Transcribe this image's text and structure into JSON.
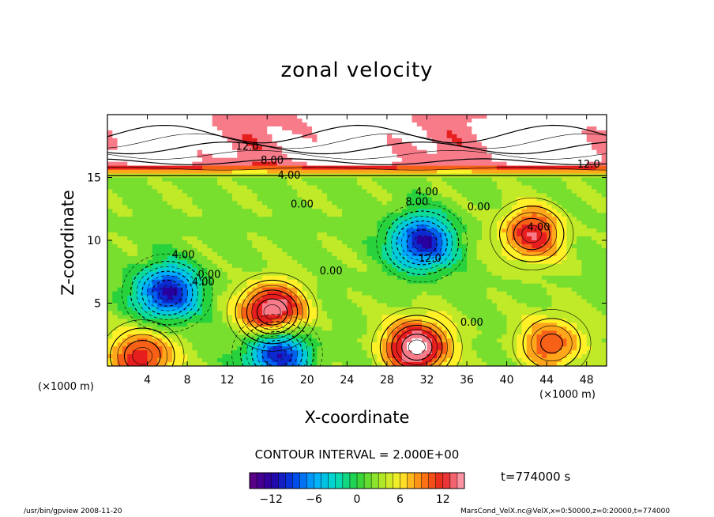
{
  "chart_data": {
    "type": "contour",
    "title": "zonal velocity",
    "xlabel": "X-coordinate",
    "ylabel": "Z-coordinate",
    "x_unit_label": "(×1000 m)",
    "z_unit_label": "(×1000 m)",
    "xlim": [
      0,
      50
    ],
    "ylim": [
      0,
      20
    ],
    "x_ticks": [
      4,
      8,
      12,
      16,
      20,
      24,
      28,
      32,
      36,
      40,
      44,
      48
    ],
    "y_ticks": [
      5,
      10,
      15
    ],
    "contour_interval_text": "CONTOUR INTERVAL = 2.000E+00",
    "colorbar": {
      "range": [
        -15,
        15
      ],
      "ticks": [
        -12,
        -6,
        0,
        6,
        12
      ],
      "tick_labels": [
        "−12",
        "−6",
        "0",
        "6",
        "12"
      ]
    },
    "contour_labels": [
      {
        "text": "12.0",
        "x": 14.0,
        "z": 17.2
      },
      {
        "text": "8.00",
        "x": 16.5,
        "z": 16.1
      },
      {
        "text": "4.00",
        "x": 18.2,
        "z": 14.9
      },
      {
        "text": "0.00",
        "x": 19.5,
        "z": 12.6
      },
      {
        "text": "12.0",
        "x": 48.2,
        "z": 15.8
      },
      {
        "text": "4.00",
        "x": 32.0,
        "z": 13.6
      },
      {
        "text": "8.00",
        "x": 31.0,
        "z": 12.8
      },
      {
        "text": "0.00",
        "x": 37.2,
        "z": 12.4
      },
      {
        "text": "4.00",
        "x": 43.2,
        "z": 10.8
      },
      {
        "text": "4.00",
        "x": 7.6,
        "z": 8.6
      },
      {
        "text": "0.00",
        "x": 10.2,
        "z": 7.0
      },
      {
        "text": "4.00",
        "x": 9.6,
        "z": 6.4
      },
      {
        "text": "0.00",
        "x": 22.4,
        "z": 7.3
      },
      {
        "text": "12.0",
        "x": 32.3,
        "z": 8.3
      },
      {
        "text": "0.00",
        "x": 36.5,
        "z": 3.2
      }
    ],
    "features": [
      {
        "kind": "jet",
        "z_range": [
          15,
          20
        ],
        "value_approx": 13
      },
      {
        "kind": "vortex",
        "x": 31.5,
        "z": 9.8,
        "value_approx": -14
      },
      {
        "kind": "vortex",
        "x": 6.0,
        "z": 5.8,
        "value_approx": -14
      },
      {
        "kind": "vortex",
        "x": 16.5,
        "z": 4.3,
        "value_approx": 14
      },
      {
        "kind": "vortex",
        "x": 42.5,
        "z": 10.5,
        "value_approx": 10
      },
      {
        "kind": "vortex",
        "x": 31.0,
        "z": 1.5,
        "value_approx": 14
      },
      {
        "kind": "vortex",
        "x": 17.0,
        "z": 1.0,
        "value_approx": -14
      },
      {
        "kind": "vortex",
        "x": 3.5,
        "z": 0.8,
        "value_approx": 10
      },
      {
        "kind": "vortex",
        "x": 44.5,
        "z": 1.8,
        "value_approx": 8
      }
    ],
    "time_label": "t=774000  s"
  },
  "footer": {
    "left": "/usr/bin/gpview   2008-11-20",
    "right": "MarsCond_VelX.nc@VelX,x=0:50000,z=0:20000,t=774000"
  }
}
